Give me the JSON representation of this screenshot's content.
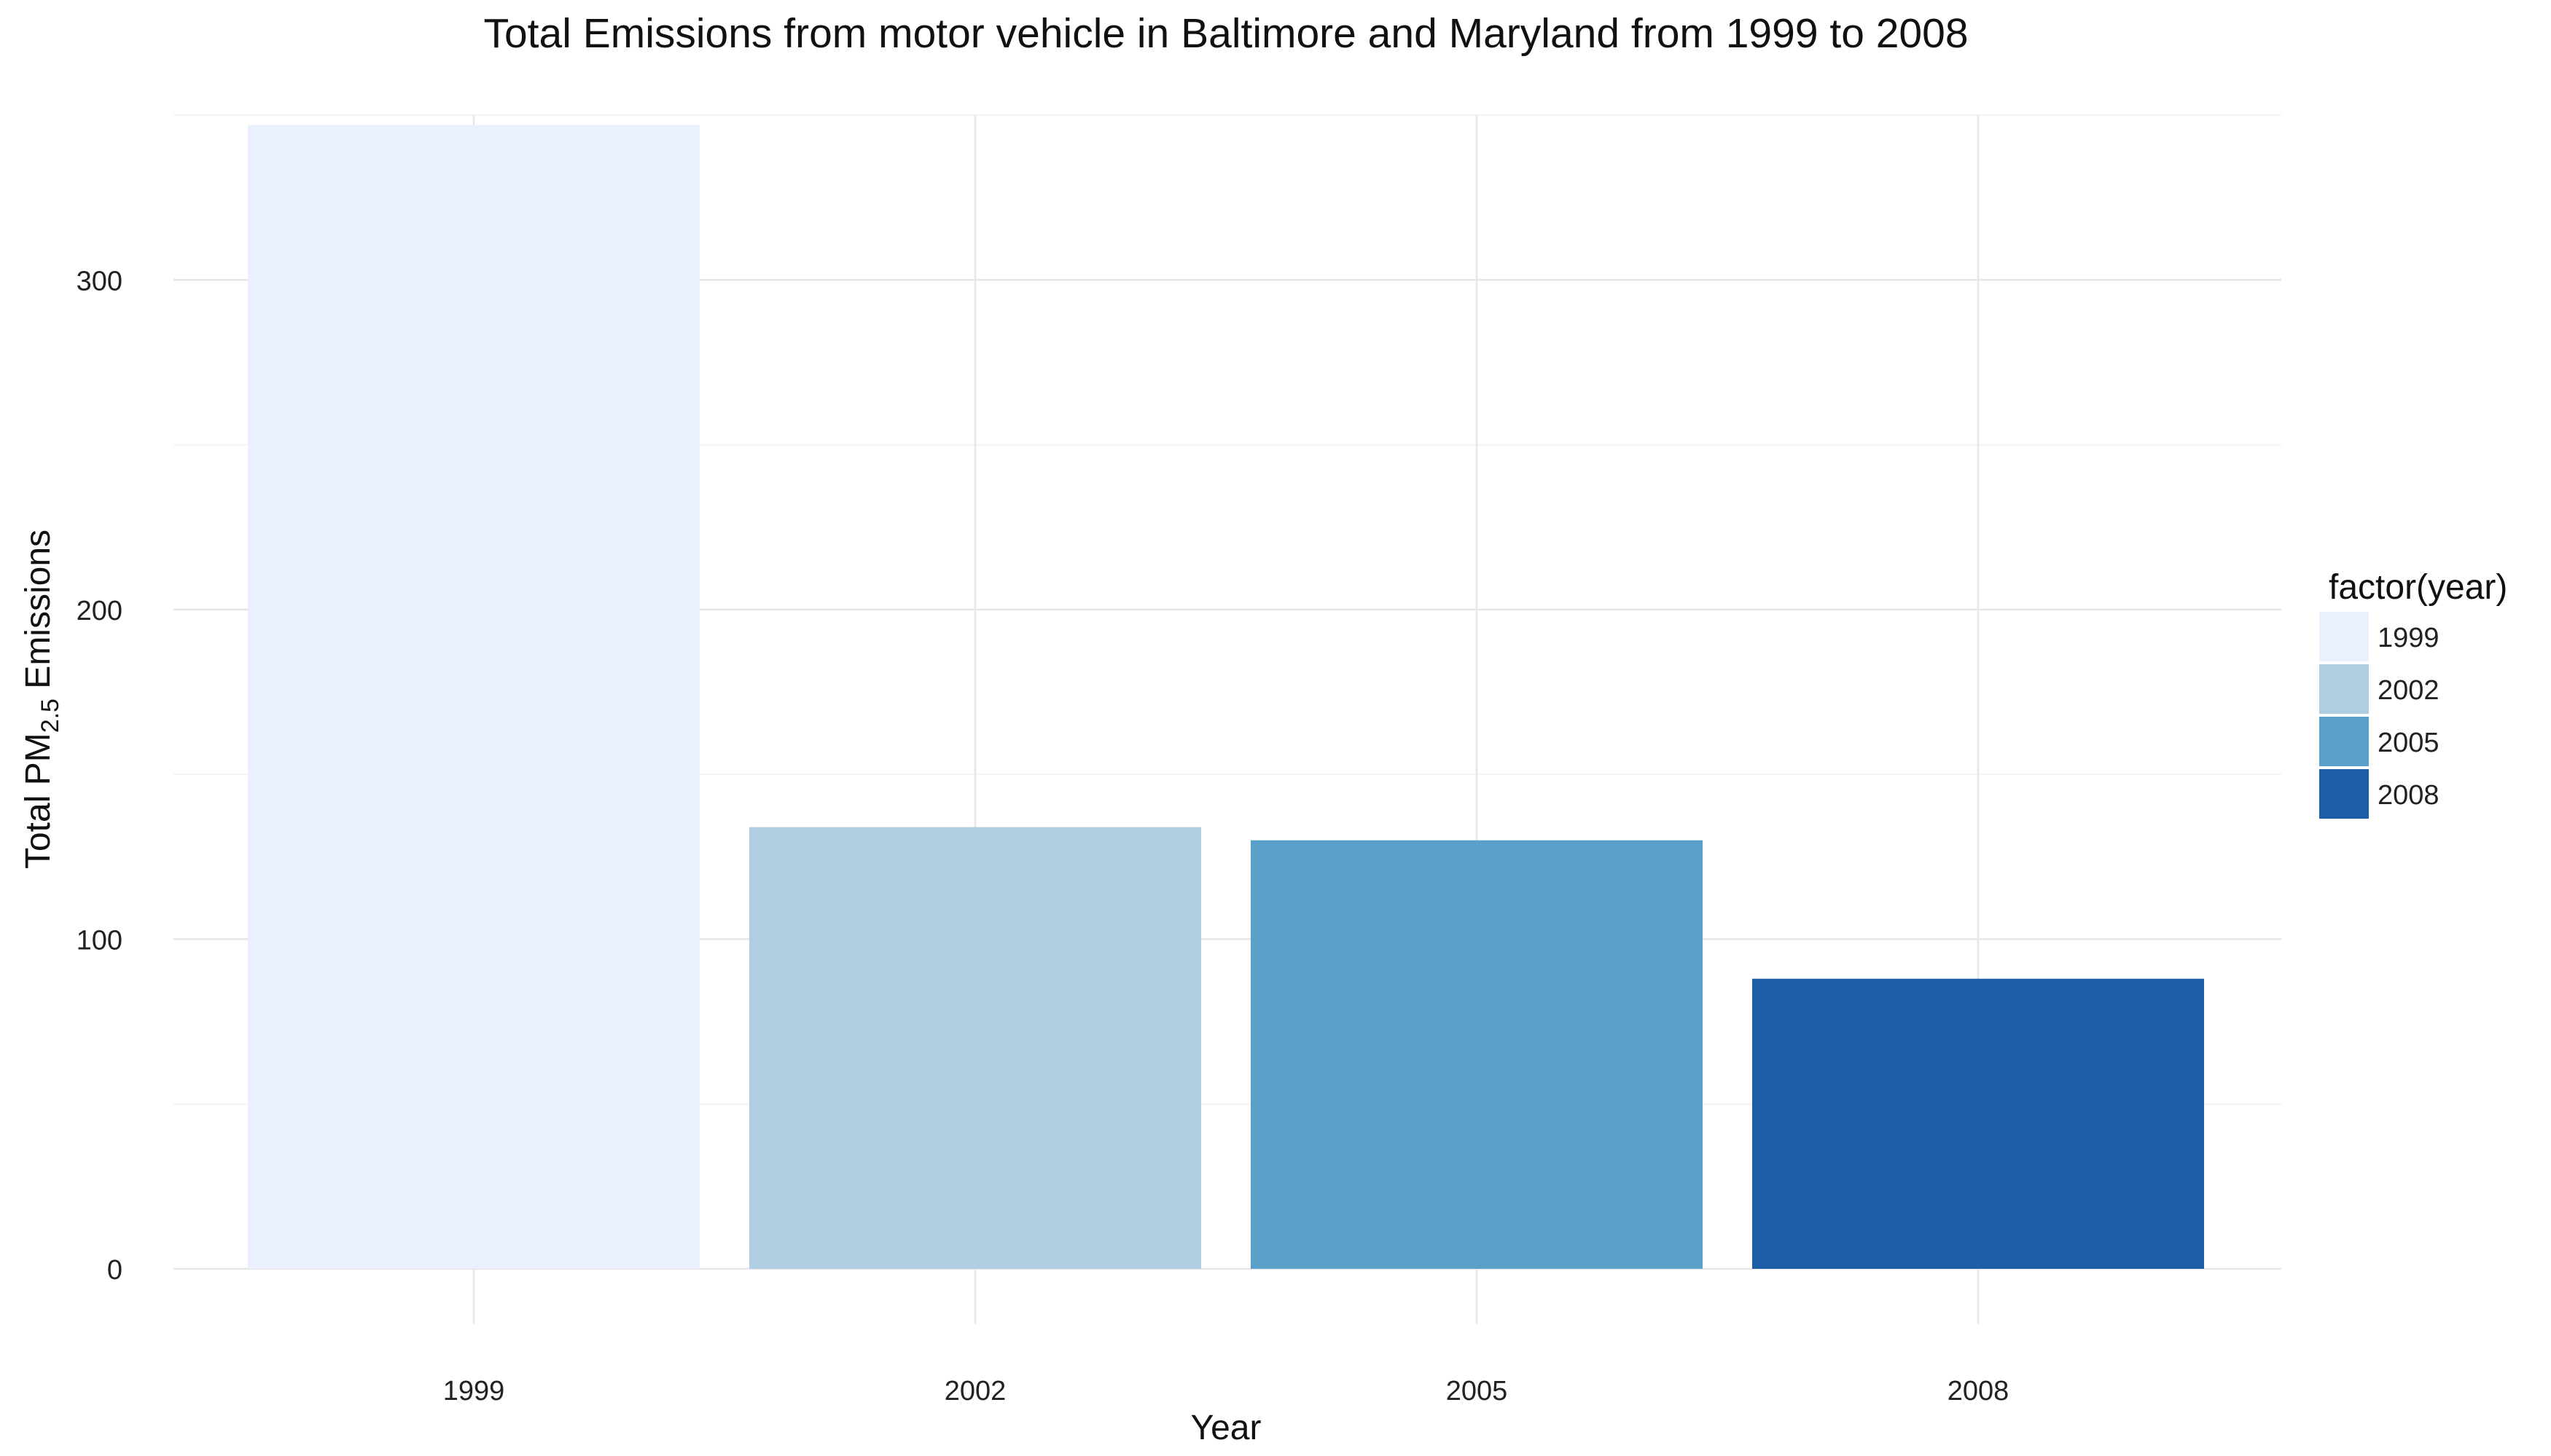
{
  "chart_data": {
    "type": "bar",
    "title": "Total Emissions from motor vehicle  in Baltimore and Maryland from 1999 to 2008",
    "xlabel": "Year",
    "ylabel": {
      "prefix": "Total PM",
      "subscript": "2.5",
      "suffix": " Emissions"
    },
    "categories": [
      "1999",
      "2002",
      "2005",
      "2008"
    ],
    "values": [
      347,
      134,
      130,
      88
    ],
    "colors": [
      "#EAF0FD",
      "#B0CEE2",
      "#5B9FCB",
      "#1D5CA7"
    ],
    "ylim": [
      0,
      350
    ],
    "y_ticks": [
      0,
      100,
      200,
      300
    ],
    "y_minor_ticks": [
      50,
      150,
      250,
      350
    ],
    "grid": true,
    "legend": {
      "title": "factor(year)",
      "position": "right",
      "entries": [
        "1999",
        "2002",
        "2005",
        "2008"
      ]
    }
  }
}
